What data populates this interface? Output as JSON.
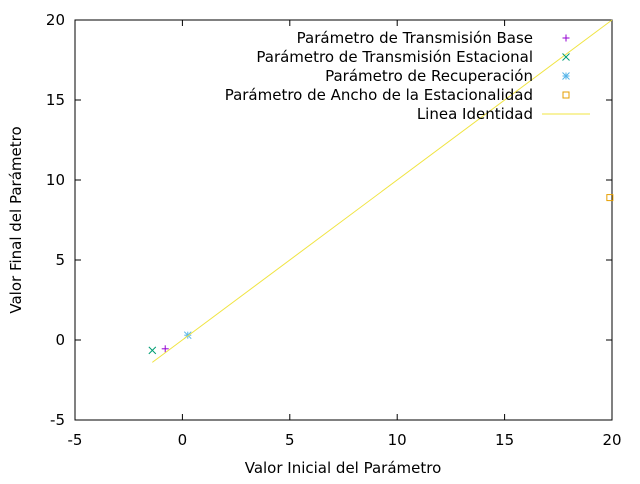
{
  "chart_data": {
    "type": "scatter",
    "title": "",
    "xlabel": "Valor Inicial del Parámetro",
    "ylabel": "Valor Final del Parámetro",
    "xlim": [
      -5,
      20
    ],
    "ylim": [
      -5,
      20
    ],
    "x_ticks": [
      -5,
      0,
      5,
      10,
      15,
      20
    ],
    "y_ticks": [
      -5,
      0,
      5,
      10,
      15,
      20
    ],
    "x_tick_labels": [
      "-5",
      "0",
      "5",
      "10",
      "15",
      "20"
    ],
    "y_tick_labels": [
      "-5",
      "0",
      "5",
      "10",
      "15",
      "20"
    ],
    "grid": false,
    "legend_position": "top-right",
    "series": [
      {
        "name": "Parámetro de Transmisión Base",
        "marker": "plus",
        "color": "#9400d3",
        "points": [
          [
            -0.8,
            -0.55
          ]
        ]
      },
      {
        "name": "Parámetro de Transmisión Estacional",
        "marker": "cross",
        "color": "#009e73",
        "points": [
          [
            -1.4,
            -0.65
          ]
        ]
      },
      {
        "name": "Parámetro de Recuperación",
        "marker": "star",
        "color": "#56b4e9",
        "points": [
          [
            0.25,
            0.3
          ]
        ]
      },
      {
        "name": "Parámetro de Ancho de la Estacionalidad",
        "marker": "square",
        "color": "#e69f00",
        "points": [
          [
            19.9,
            8.9
          ]
        ]
      },
      {
        "name": "Linea Identidad",
        "marker": "line",
        "color": "#f0e442",
        "points": [
          [
            -1.4,
            -1.4
          ],
          [
            20,
            20
          ]
        ]
      }
    ]
  }
}
